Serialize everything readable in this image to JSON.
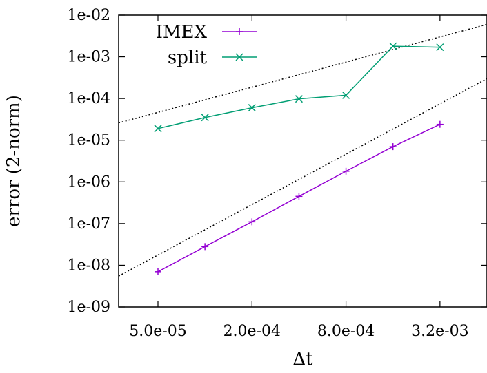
{
  "chart_data": {
    "type": "line",
    "xscale": "log",
    "yscale": "log",
    "xlabel": "Δt",
    "ylabel": "error (2-norm)",
    "xlim": [
      2.8e-05,
      0.0064
    ],
    "ylim": [
      1e-09,
      0.01
    ],
    "xticks": [
      5e-05,
      0.0002,
      0.0008,
      0.0032
    ],
    "xtick_labels": [
      "5.0e-05",
      "2.0e-04",
      "8.0e-04",
      "3.2e-03"
    ],
    "yticks": [
      1e-09,
      1e-08,
      1e-07,
      1e-06,
      1e-05,
      0.0001,
      0.001,
      0.01
    ],
    "ytick_labels": [
      "1e-09",
      "1e-08",
      "1e-07",
      "1e-06",
      "1e-05",
      "1e-04",
      "1e-03",
      "1e-02"
    ],
    "grid": false,
    "legend_position": "top-left",
    "series": [
      {
        "name": "IMEX",
        "color": "#9400D3",
        "marker": "plus",
        "x": [
          5e-05,
          0.0001,
          0.0002,
          0.0004,
          0.0008,
          0.0016,
          0.0032
        ],
        "y": [
          7e-09,
          2.8e-08,
          1.1e-07,
          4.5e-07,
          1.8e-06,
          7e-06,
          2.4e-05
        ]
      },
      {
        "name": "split",
        "color": "#009E73",
        "marker": "x",
        "x": [
          5e-05,
          0.0001,
          0.0002,
          0.0004,
          0.0008,
          0.0016,
          0.0032
        ],
        "y": [
          1.9e-05,
          3.5e-05,
          6e-05,
          9.8e-05,
          0.00012,
          0.0018,
          0.0017
        ]
      }
    ],
    "reference_lines": [
      {
        "style": "dotted",
        "color": "#000000",
        "x": [
          2.8e-05,
          0.0064
        ],
        "y": [
          5.5e-09,
          0.0003
        ]
      },
      {
        "style": "dotted",
        "color": "#000000",
        "x": [
          2.8e-05,
          0.0064
        ],
        "y": [
          2.6e-05,
          0.006
        ]
      }
    ]
  }
}
